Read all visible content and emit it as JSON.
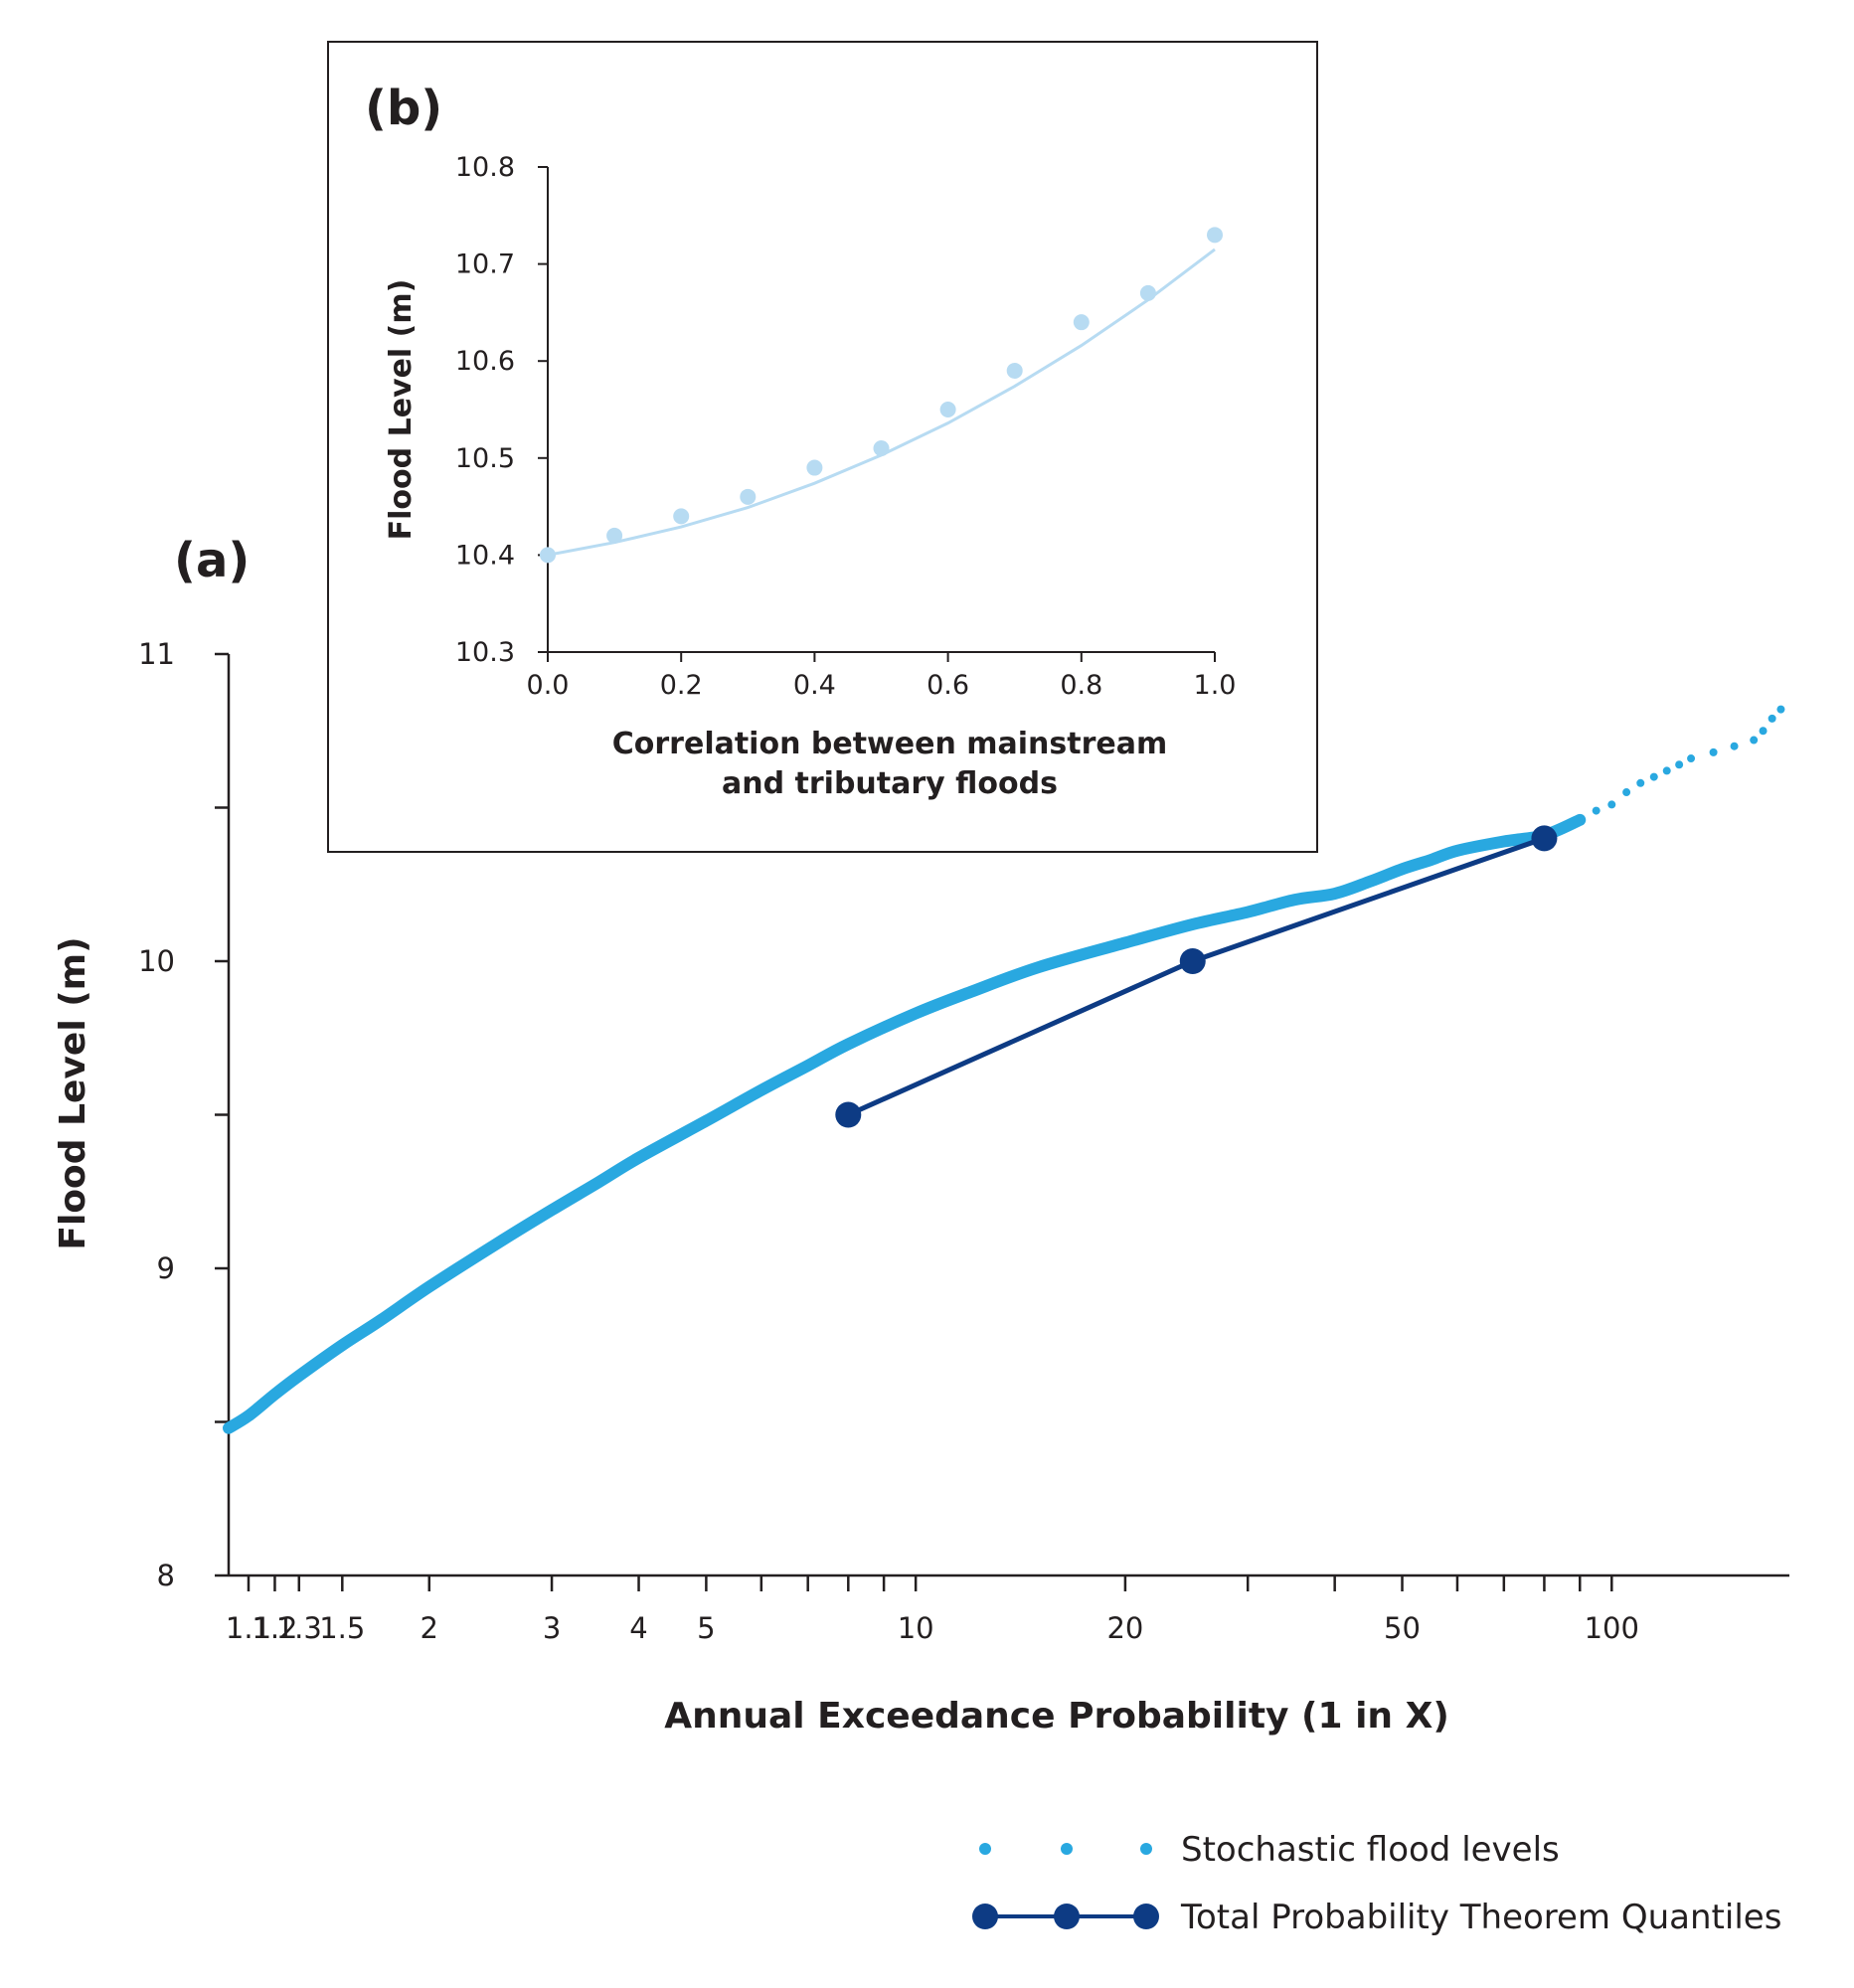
{
  "chart_data": [
    {
      "panel_label": "(a)",
      "type": "line",
      "xlabel": "Annual Exceedance Probability (1 in X)",
      "ylabel": "Flood Level (m)",
      "x_scale": "log",
      "xlim": [
        1.03,
        180
      ],
      "ylim": [
        8,
        11
      ],
      "x_ticks": [
        1.1,
        1.2,
        1.3,
        1.5,
        2,
        3,
        4,
        5,
        6,
        7,
        8,
        9,
        10,
        20,
        30,
        40,
        50,
        60,
        70,
        80,
        90,
        100
      ],
      "x_tick_labels": [
        {
          "x": 1.1,
          "label": "1.1"
        },
        {
          "x": 1.2,
          "label": "1.2"
        },
        {
          "x": 1.3,
          "label": "1.3"
        },
        {
          "x": 1.5,
          "label": "1.5"
        },
        {
          "x": 2,
          "label": "2"
        },
        {
          "x": 3,
          "label": "3"
        },
        {
          "x": 4,
          "label": "4"
        },
        {
          "x": 5,
          "label": "5"
        },
        {
          "x": 10,
          "label": "10"
        },
        {
          "x": 20,
          "label": "20"
        },
        {
          "x": 50,
          "label": "50"
        },
        {
          "x": 100,
          "label": "100"
        }
      ],
      "y_ticks": [
        8,
        8.5,
        9,
        9.5,
        10,
        10.5,
        11
      ],
      "y_tick_labels": [
        {
          "y": 8,
          "label": "8"
        },
        {
          "y": 9,
          "label": "9"
        },
        {
          "y": 10,
          "label": "10"
        },
        {
          "y": 11,
          "label": "11"
        }
      ],
      "series": [
        {
          "name": "Stochastic flood levels",
          "color": "#29a8e0",
          "style": "thick-line",
          "x": [
            1.03,
            1.1,
            1.2,
            1.3,
            1.5,
            1.7,
            2,
            2.5,
            3,
            3.5,
            4,
            5,
            6,
            7,
            8,
            10,
            12,
            15,
            20,
            25,
            30,
            35,
            40,
            45,
            50,
            55,
            60,
            70,
            80,
            90
          ],
          "y": [
            8.48,
            8.52,
            8.59,
            8.65,
            8.75,
            8.83,
            8.94,
            9.08,
            9.19,
            9.28,
            9.36,
            9.48,
            9.58,
            9.66,
            9.73,
            9.83,
            9.9,
            9.98,
            10.06,
            10.12,
            10.16,
            10.2,
            10.22,
            10.26,
            10.3,
            10.33,
            10.36,
            10.39,
            10.41,
            10.46
          ]
        },
        {
          "name": "Stochastic flood levels (tail)",
          "color": "#29a8e0",
          "style": "dots",
          "x": [
            95,
            100,
            105,
            110,
            115,
            120,
            125,
            130,
            140,
            150,
            160,
            165,
            170,
            175
          ],
          "y": [
            10.49,
            10.51,
            10.55,
            10.58,
            10.6,
            10.62,
            10.64,
            10.66,
            10.68,
            10.7,
            10.72,
            10.75,
            10.79,
            10.82
          ]
        },
        {
          "name": "Total Probability Theorem Quantiles",
          "color": "#0d3b84",
          "style": "line-markers",
          "x": [
            8,
            25,
            80
          ],
          "y": [
            9.5,
            10.0,
            10.4
          ]
        }
      ],
      "legend": {
        "placement": "bottom-right",
        "entries": [
          "Stochastic flood levels",
          "Total Probability Theorem Quantiles"
        ]
      }
    },
    {
      "panel_label": "(b)",
      "type": "scatter",
      "xlabel_lines": [
        "Correlation between mainstream",
        "and tributary floods"
      ],
      "ylabel": "Flood Level (m)",
      "xlim": [
        0,
        1
      ],
      "ylim": [
        10.3,
        10.8
      ],
      "x_ticks": [
        0,
        0.2,
        0.4,
        0.6,
        0.8,
        1.0
      ],
      "x_tick_labels": [
        "0.0",
        "0.2",
        "0.4",
        "0.6",
        "0.8",
        "1.0"
      ],
      "y_ticks": [
        10.3,
        10.4,
        10.5,
        10.6,
        10.7,
        10.8
      ],
      "y_tick_labels": [
        "10.3",
        "10.4",
        "10.5",
        "10.6",
        "10.7",
        "10.8"
      ],
      "point_color": "#b7dbf2",
      "fit_color": "#b7dbf2",
      "x": [
        0.0,
        0.1,
        0.2,
        0.3,
        0.4,
        0.5,
        0.6,
        0.7,
        0.8,
        0.9,
        1.0
      ],
      "y": [
        10.4,
        10.42,
        10.44,
        10.46,
        10.49,
        10.51,
        10.55,
        10.59,
        10.64,
        10.67,
        10.73
      ],
      "fit_x": [
        0.0,
        0.1,
        0.2,
        0.3,
        0.4,
        0.5,
        0.6,
        0.7,
        0.8,
        0.9,
        1.0
      ],
      "fit_y": [
        10.4,
        10.413,
        10.429,
        10.449,
        10.474,
        10.503,
        10.536,
        10.574,
        10.616,
        10.663,
        10.715
      ]
    }
  ],
  "colors": {
    "axis": "#231f20",
    "stochastic": "#29a8e0",
    "quantiles": "#0d3b84",
    "inset_points": "#b7dbf2",
    "inset_frame": "#231f20"
  }
}
